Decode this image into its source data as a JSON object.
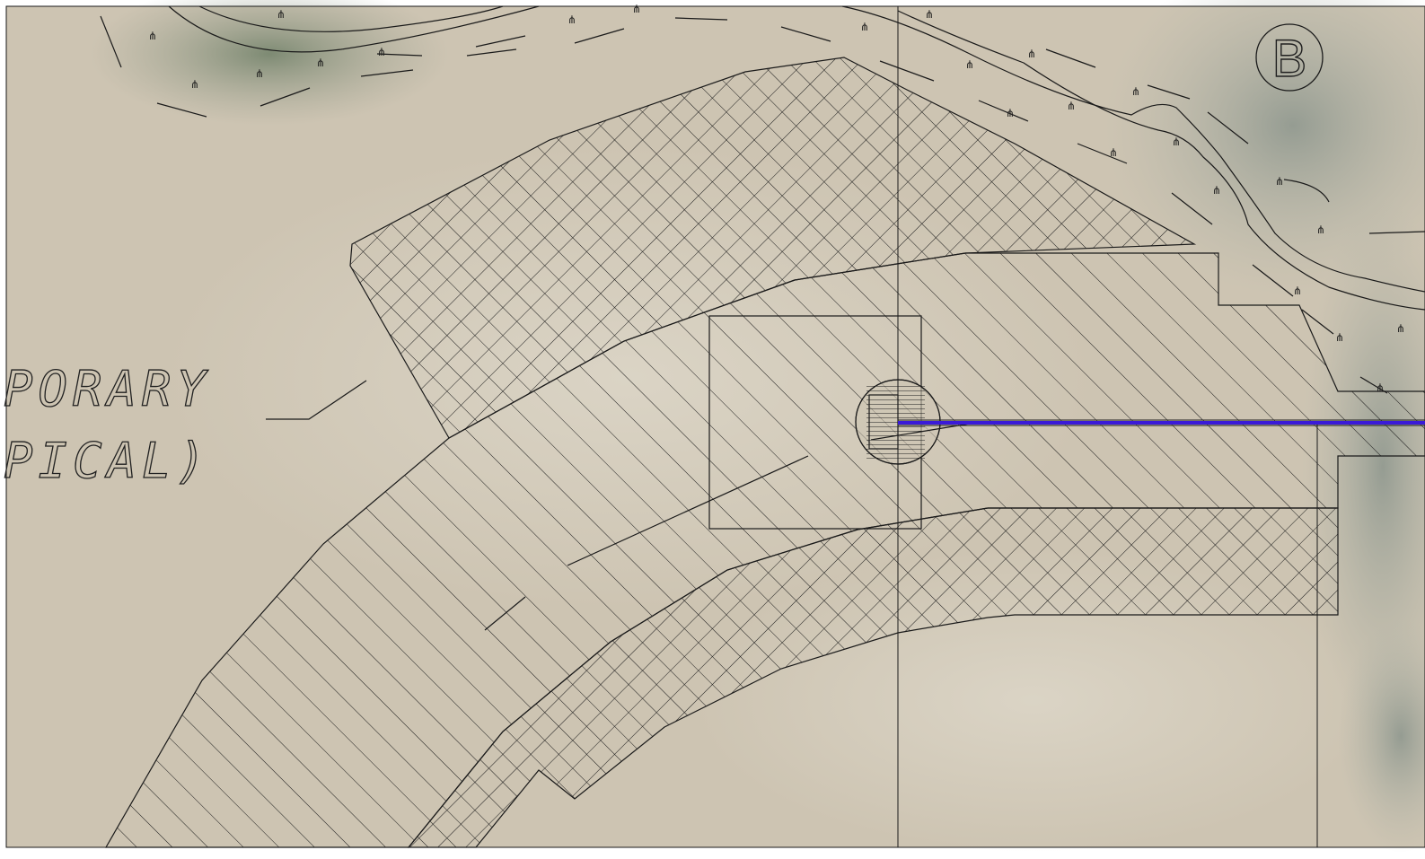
{
  "plan": {
    "callout_line1": "PORARY",
    "callout_line2": "PICAL)",
    "section_marker": "B"
  },
  "colors": {
    "line": "#1a1a1a",
    "pipe": "#3a1ad8",
    "aerial_base": "#cfc6b4",
    "vegetation": "#7f8f78"
  }
}
